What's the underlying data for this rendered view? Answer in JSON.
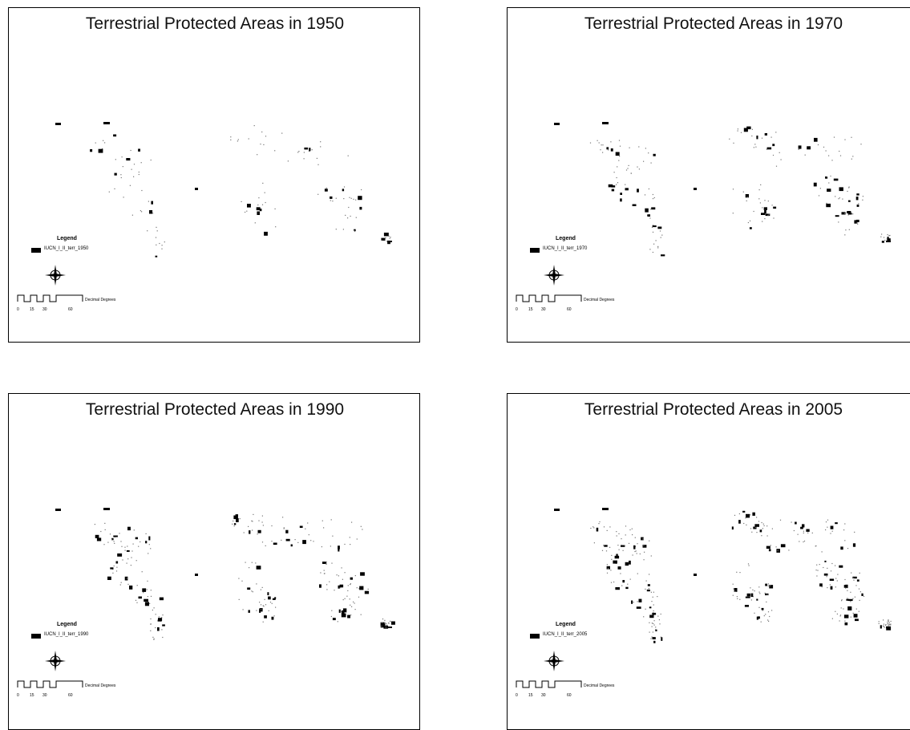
{
  "panels": [
    {
      "title": "Terrestrial Protected Areas in 1950",
      "legend_title": "Legend",
      "legend_item": "IUCN_I_II_terr_1950",
      "density": 1
    },
    {
      "title": "Terrestrial Protected Areas in 1970",
      "legend_title": "Legend",
      "legend_item": "IUCN_I_II_terr_1970",
      "density": 2
    },
    {
      "title": "Terrestrial Protected Areas in 1990",
      "legend_title": "Legend",
      "legend_item": "IUCN_I_II_terr_1990",
      "density": 3
    },
    {
      "title": "Terrestrial Protected Areas in 2005",
      "legend_title": "Legend",
      "legend_item": "IUCN_I_II_terr_2005",
      "density": 4
    }
  ],
  "scalebar": {
    "ticks": [
      "0",
      "15",
      "30",
      "60"
    ],
    "units": "Decimal Degrees"
  },
  "colors": {
    "protected_area": "#000000",
    "frame": "#000000",
    "background": "#ffffff"
  }
}
